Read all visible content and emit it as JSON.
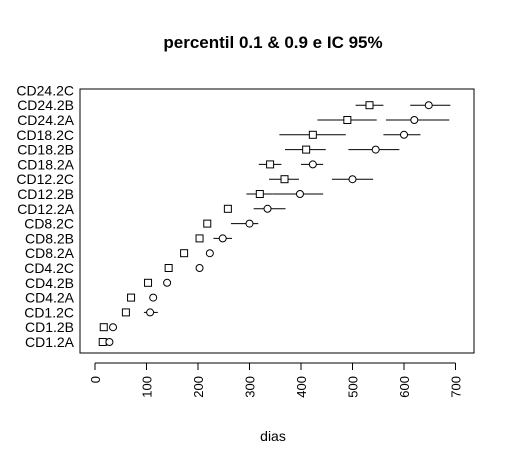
{
  "chart_data": {
    "type": "dotplot-interval",
    "title": "percentil 0.1 & 0.9 e IC 95%",
    "xlabel": "dias",
    "ylabel": "",
    "xlim": [
      0,
      700
    ],
    "xticks": [
      0,
      100,
      200,
      300,
      400,
      500,
      600,
      700
    ],
    "categories": [
      "CD1.2A",
      "CD1.2B",
      "CD1.2C",
      "CD4.2A",
      "CD4.2B",
      "CD4.2C",
      "CD8.2A",
      "CD8.2B",
      "CD8.2C",
      "CD12.2A",
      "CD12.2B",
      "CD12.2C",
      "CD18.2A",
      "CD18.2B",
      "CD18.2C",
      "CD24.2A",
      "CD24.2B",
      "CD24.2C"
    ],
    "series": [
      {
        "name": "percentil 0.1",
        "marker": "square",
        "values": [
          15,
          17,
          60,
          70,
          103,
          143,
          173,
          203,
          218,
          258,
          320,
          368,
          340,
          410,
          423,
          490,
          533,
          null
        ],
        "ci_low": [
          null,
          null,
          null,
          null,
          null,
          null,
          null,
          null,
          null,
          null,
          294,
          338,
          318,
          369,
          358,
          432,
          506,
          null
        ],
        "ci_high": [
          null,
          null,
          null,
          null,
          null,
          null,
          null,
          null,
          null,
          null,
          345,
          396,
          362,
          448,
          487,
          547,
          560,
          null
        ]
      },
      {
        "name": "percentil 0.9",
        "marker": "circle",
        "values": [
          28,
          35,
          107,
          113,
          140,
          203,
          223,
          248,
          300,
          335,
          398,
          500,
          423,
          545,
          600,
          620,
          648,
          null
        ],
        "ci_low": [
          null,
          null,
          95,
          null,
          null,
          null,
          null,
          230,
          264,
          308,
          345,
          460,
          400,
          492,
          560,
          565,
          612,
          null
        ],
        "ci_high": [
          null,
          null,
          122,
          null,
          null,
          null,
          null,
          266,
          317,
          370,
          443,
          540,
          443,
          591,
          632,
          688,
          690,
          null
        ]
      }
    ]
  }
}
